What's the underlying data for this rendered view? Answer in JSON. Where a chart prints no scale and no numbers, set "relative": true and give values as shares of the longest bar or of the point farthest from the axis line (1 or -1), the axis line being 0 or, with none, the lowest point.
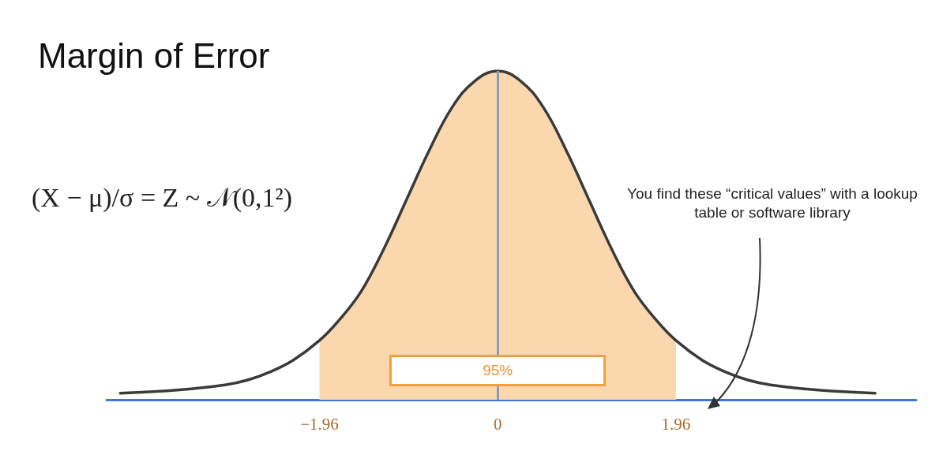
{
  "chart_data": {
    "type": "line",
    "title": "Margin of Error",
    "relative": true,
    "xlim": [
      -4.3,
      4.6
    ],
    "xticks": [
      {
        "value": -1.96,
        "label": "−1.96"
      },
      0,
      1.96
    ],
    "series": [
      {
        "type": "area",
        "color": "#fbd7ad",
        "x": [
          -1.96,
          -1.75,
          -1.5,
          -1.25,
          -1,
          -0.75,
          -0.5,
          -0.25,
          0,
          0.25,
          0.5,
          0.75,
          1,
          1.25,
          1.5,
          1.75,
          1.96
        ],
        "values": [
          0.18,
          0.24,
          0.33,
          0.46,
          0.61,
          0.76,
          0.89,
          0.97,
          1,
          0.97,
          0.89,
          0.76,
          0.61,
          0.46,
          0.33,
          0.24,
          0.18
        ]
      },
      {
        "color": "#3a3a3a",
        "x": [
          -4.15,
          -3.5,
          -3,
          -2.75,
          -2.5,
          -2.25,
          -1.96,
          -1.75,
          -1.5,
          -1.25,
          -1,
          -0.75,
          -0.5,
          -0.25,
          0,
          0.25,
          0.5,
          0.75,
          1,
          1.25,
          1.5,
          1.75,
          1.96,
          2.25,
          2.5,
          2.75,
          3,
          3.5,
          4.15
        ],
        "values": [
          0.02,
          0.03,
          0.045,
          0.06,
          0.085,
          0.12,
          0.18,
          0.24,
          0.33,
          0.46,
          0.61,
          0.76,
          0.89,
          0.97,
          1,
          0.97,
          0.89,
          0.76,
          0.61,
          0.46,
          0.33,
          0.24,
          0.18,
          0.12,
          0.085,
          0.06,
          0.045,
          0.03,
          0.02
        ]
      }
    ],
    "marker": "none",
    "grid": false,
    "ref_lines": [
      {
        "axis": "x",
        "value": 0,
        "color": "#8e9bb5"
      }
    ],
    "annotations": [
      "(X − μ)/σ = Z ~ 𝒩(0,1²)",
      "95%",
      "You find these “critical values” with a lookup table or software library"
    ]
  }
}
